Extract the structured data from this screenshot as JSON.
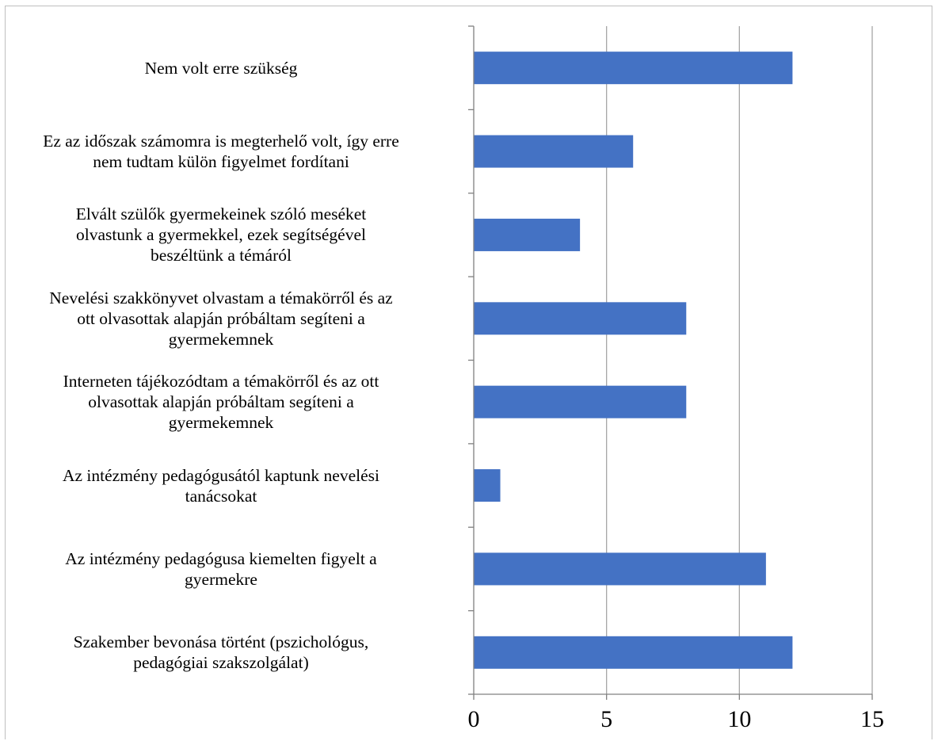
{
  "chart_data": {
    "type": "bar",
    "orientation": "horizontal",
    "categories": [
      "Nem volt erre szükség",
      "Ez az időszak számomra is megterhelő volt, így erre\nnem tudtam külön figyelmet fordítani",
      "Elvált szülők gyermekeinek szóló meséket\nolvastunk a gyermekkel, ezek segítségével\nbeszéltünk a témáról",
      "Nevelési szakkönyvet olvastam a témakörről és az\nott olvasottak alapján próbáltam segíteni a\ngyermekemnek",
      "Interneten tájékozódtam a témakörről és az ott\nolvasottak alapján próbáltam segíteni a\ngyermekemnek",
      "Az intézmény pedagógusától kaptunk nevelési\ntanácsokat",
      "Az intézmény pedagógusa kiemelten figyelt a\ngyermekre",
      "Szakember bevonása történt (pszichológus,\npedagógiai szakszolgálat)"
    ],
    "values": [
      12,
      6,
      4,
      8,
      8,
      1,
      11,
      12
    ],
    "xlim": [
      0,
      15
    ],
    "xticks": [
      "0",
      "5",
      "10",
      "15"
    ],
    "bar_color": "#4472c4",
    "grid": true,
    "title": "",
    "xlabel": "",
    "ylabel": ""
  }
}
